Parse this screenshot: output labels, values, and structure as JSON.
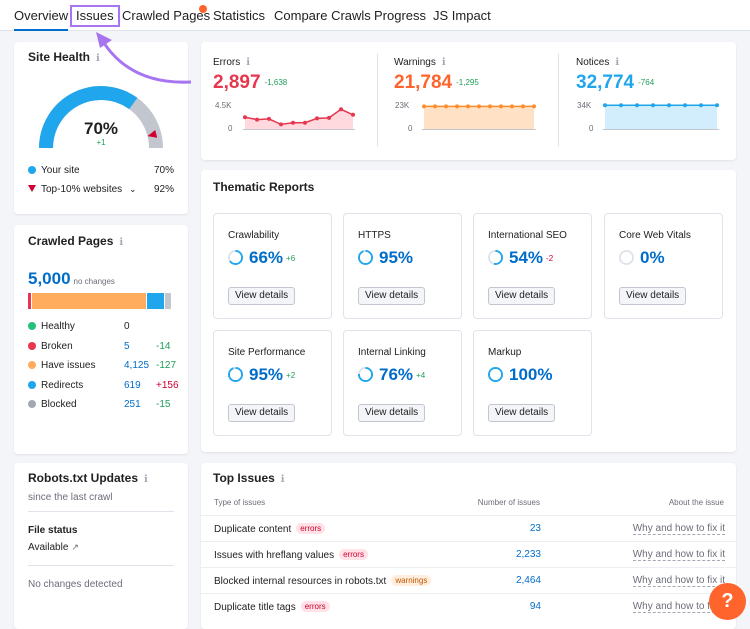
{
  "tabs": [
    {
      "label": "Overview",
      "active": true
    },
    {
      "label": "Issues",
      "highlighted": true
    },
    {
      "label": "Crawled Pages",
      "has_dot": true
    },
    {
      "label": "Statistics"
    },
    {
      "label": "Compare Crawls"
    },
    {
      "label": "Progress"
    },
    {
      "label": "JS Impact"
    }
  ],
  "site_health": {
    "title": "Site Health",
    "value": "70%",
    "delta": "+1",
    "gauge_fraction": 0.7,
    "top10_fraction": 0.92,
    "legend": [
      {
        "label": "Your site",
        "value": "70%",
        "color": "#1fa6ec"
      },
      {
        "label": "Top-10% websites",
        "value": "92%",
        "color": "#d1002f"
      }
    ]
  },
  "metrics": [
    {
      "label": "Errors",
      "value": "2,897",
      "delta": "-1,638",
      "color": "#e6374f",
      "fill": "#ffd9de",
      "y_top": "4.5K",
      "y_bottom": "0",
      "points": [
        0.45,
        0.35,
        0.38,
        0.15,
        0.22,
        0.22,
        0.4,
        0.42,
        0.78,
        0.55
      ]
    },
    {
      "label": "Warnings",
      "value": "21,784",
      "delta": "-1,295",
      "color": "#ff8c2b",
      "fill": "#ffe2c6",
      "y_top": "23K",
      "y_bottom": "0",
      "points": [
        0.9,
        0.9,
        0.9,
        0.9,
        0.9,
        0.9,
        0.9,
        0.9,
        0.9,
        0.9,
        0.9
      ]
    },
    {
      "label": "Notices",
      "value": "32,774",
      "delta": "-764",
      "color": "#1fa6ec",
      "fill": "#d2edfc",
      "y_top": "34K",
      "y_bottom": "0",
      "points": [
        0.95,
        0.95,
        0.95,
        0.95,
        0.95,
        0.95,
        0.95,
        0.95
      ]
    }
  ],
  "crawled_pages": {
    "title": "Crawled Pages",
    "total": "5,000",
    "total_note": "no changes",
    "bar": [
      {
        "color": "#e6374f",
        "fraction": 0.02
      },
      {
        "color": "#ffac5e",
        "fraction": 0.8
      },
      {
        "color": "#1fa6ec",
        "fraction": 0.115
      },
      {
        "color": "#c2c7cf",
        "fraction": 0.045
      }
    ],
    "legend": [
      {
        "label": "Healthy",
        "value": "0",
        "delta": "",
        "color": "#25c17a",
        "delta_color": "#1e9e5a"
      },
      {
        "label": "Broken",
        "value": "5",
        "delta": "-14",
        "color": "#e6374f",
        "delta_color": "#1e9e5a"
      },
      {
        "label": "Have issues",
        "value": "4,125",
        "delta": "-127",
        "color": "#ffac5e",
        "delta_color": "#1e9e5a"
      },
      {
        "label": "Redirects",
        "value": "619",
        "delta": "+156",
        "color": "#1fa6ec",
        "delta_color": "#d1002f"
      },
      {
        "label": "Blocked",
        "value": "251",
        "delta": "-15",
        "color": "#a3a8b3",
        "delta_color": "#1e9e5a"
      }
    ]
  },
  "robots": {
    "title": "Robots.txt Updates",
    "subtitle": "since the last crawl",
    "file_status_label": "File status",
    "file_status_value": "Available",
    "changes_text": "No changes detected"
  },
  "thematic": {
    "title": "Thematic Reports",
    "button_label": "View details",
    "cards": [
      {
        "name": "Crawlability",
        "value": "66%",
        "delta": "+6",
        "delta_color": "#1e9e5a",
        "percent": 66
      },
      {
        "name": "HTTPS",
        "value": "95%",
        "delta": "",
        "delta_color": "#1e9e5a",
        "percent": 95
      },
      {
        "name": "International SEO",
        "value": "54%",
        "delta": "-2",
        "delta_color": "#d1002f",
        "percent": 54
      },
      {
        "name": "Core Web Vitals",
        "value": "0%",
        "delta": "",
        "delta_color": "#1e9e5a",
        "percent": 0
      },
      {
        "name": "Site Performance",
        "value": "95%",
        "delta": "+2",
        "delta_color": "#1e9e5a",
        "percent": 95
      },
      {
        "name": "Internal Linking",
        "value": "76%",
        "delta": "+4",
        "delta_color": "#1e9e5a",
        "percent": 76
      },
      {
        "name": "Markup",
        "value": "100%",
        "delta": "",
        "delta_color": "#1e9e5a",
        "percent": 100
      }
    ]
  },
  "top_issues": {
    "title": "Top Issues",
    "col_type": "Type of issues",
    "col_count": "Number of issues",
    "col_about": "About the issue",
    "link_text": "Why and how to fix it",
    "rows": [
      {
        "name": "Duplicate content",
        "tag": "errors",
        "count": "23"
      },
      {
        "name": "Issues with hreflang values",
        "tag": "errors",
        "count": "2,233"
      },
      {
        "name": "Blocked internal resources in robots.txt",
        "tag": "warnings",
        "count": "2,464"
      },
      {
        "name": "Duplicate title tags",
        "tag": "errors",
        "count": "94"
      }
    ]
  },
  "help": {
    "label": "?"
  }
}
